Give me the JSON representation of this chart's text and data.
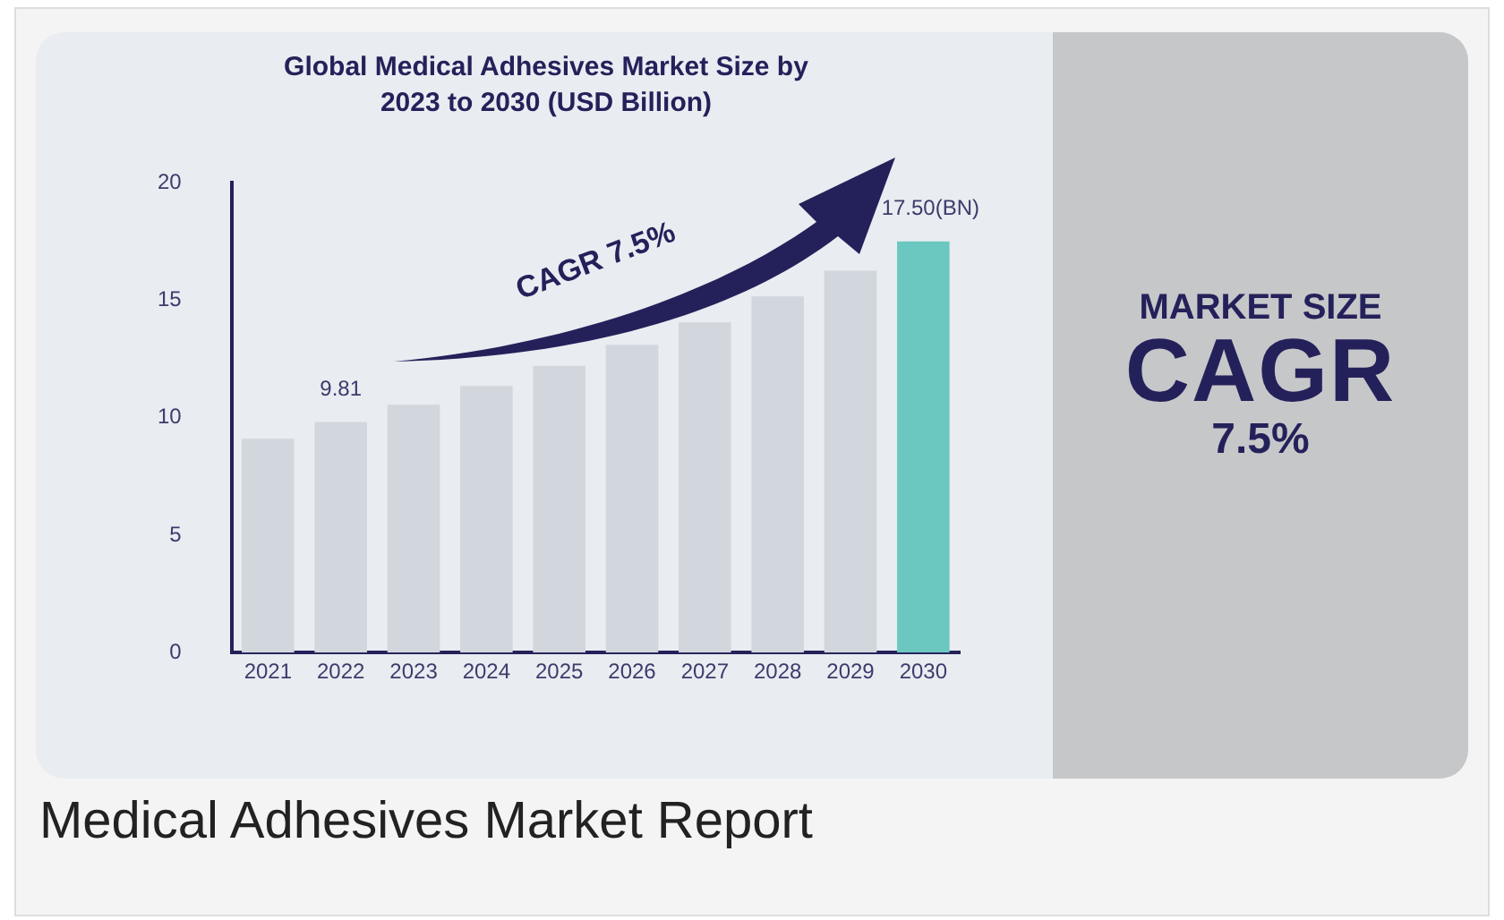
{
  "chart_data": {
    "type": "bar",
    "title": "Global Medical Adhesives Market Size by 2023 to 2030 (USD Billion)",
    "categories": [
      "2021",
      "2022",
      "2023",
      "2024",
      "2025",
      "2026",
      "2027",
      "2028",
      "2029",
      "2030"
    ],
    "values": [
      9.1,
      9.81,
      10.55,
      11.35,
      12.2,
      13.1,
      14.05,
      15.15,
      16.25,
      17.5
    ],
    "colors": [
      "#d1d7dd",
      "#d1d7dd",
      "#d1d7dd",
      "#d1d7dd",
      "#d1d7dd",
      "#d1d7dd",
      "#d1d7dd",
      "#d1d7dd",
      "#d1d7dd",
      "#6bc8c1"
    ],
    "value_labels": [
      null,
      "9.81",
      null,
      null,
      null,
      null,
      null,
      null,
      null,
      "17.50(BN)"
    ],
    "ylim": [
      0,
      20
    ],
    "yticks": [
      0,
      5,
      10,
      15,
      20
    ],
    "grid": false,
    "legend": false,
    "annotations": [
      "CAGR 7.5%",
      "MARKET SIZE",
      "CAGR",
      "7.5%",
      "Medical Adhesives Market Report"
    ]
  }
}
